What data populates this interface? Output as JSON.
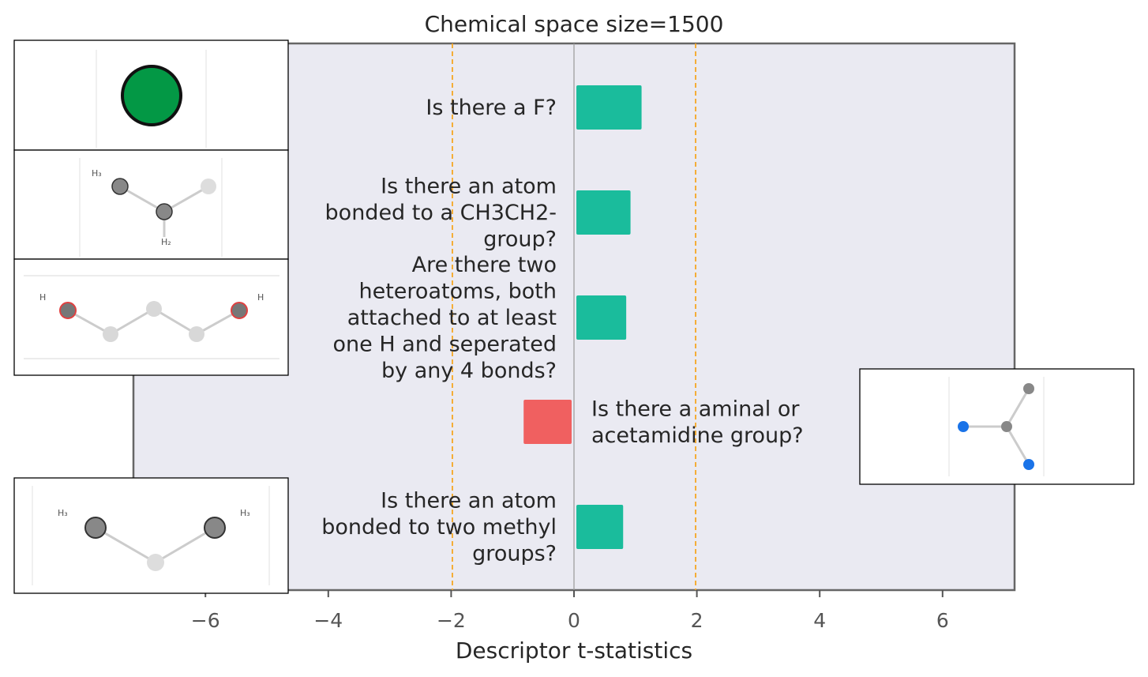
{
  "chart_data": {
    "type": "bar",
    "orientation": "horizontal",
    "title": "Chemical space size=1500",
    "xlabel": "Descriptor t-statistics",
    "ylabel": "",
    "xlim": [
      -7.2,
      7.2
    ],
    "xticks": [
      -6,
      -4,
      -2,
      0,
      2,
      4,
      6
    ],
    "xtick_labels": [
      "−6",
      "−4",
      "−2",
      "0",
      "2",
      "4",
      "6"
    ],
    "significance_lines": [
      -1.98,
      1.98
    ],
    "grid": false,
    "categories": [
      "Is there a F?",
      "Is there an atom bonded to a CH3CH2- group?",
      "Are there two heteroatoms, both attached to at least one H and seperated by any 4 bonds?",
      "Is there a aminal or acetamidine group?",
      "Is there an atom bonded to two methyl groups?"
    ],
    "category_label_lines": [
      [
        "Is there a F?"
      ],
      [
        "Is there an atom",
        "bonded to a CH3CH2-",
        "group?"
      ],
      [
        "Are there two",
        "heteroatoms, both",
        "attached to at least",
        "one H and seperated",
        "by any 4 bonds?"
      ],
      [
        "Is there a aminal or",
        "acetamidine group?"
      ],
      [
        "Is there an atom",
        "bonded to two methyl",
        "groups?"
      ]
    ],
    "values": [
      1.1,
      0.92,
      0.85,
      -0.82,
      0.8
    ],
    "colors": {
      "positive": "#1abc9c",
      "negative": "#f06060",
      "axes_background": "#eaeaf2",
      "threshold_line": "#f5a623"
    },
    "molecule_insets": [
      {
        "category_index": 0,
        "side": "left"
      },
      {
        "category_index": 1,
        "side": "left"
      },
      {
        "category_index": 2,
        "side": "left"
      },
      {
        "category_index": 3,
        "side": "right"
      },
      {
        "category_index": 4,
        "side": "left"
      }
    ]
  }
}
